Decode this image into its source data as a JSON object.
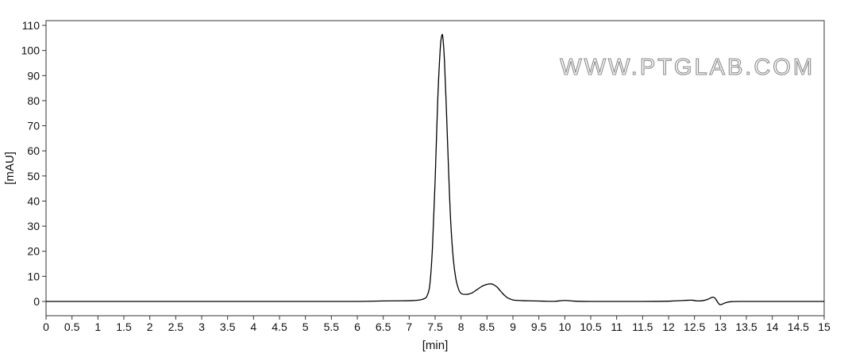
{
  "chart_data": {
    "type": "line",
    "title": "",
    "xlabel": "[min]",
    "ylabel": "[mAU]",
    "xlim": [
      0,
      15
    ],
    "ylim": [
      -6,
      112
    ],
    "x_ticks": [
      0,
      0.5,
      1,
      1.5,
      2,
      2.5,
      3,
      3.5,
      4,
      4.5,
      5,
      5.5,
      6,
      6.5,
      7,
      7.5,
      8,
      8.5,
      9,
      9.5,
      10,
      10.5,
      11,
      11.5,
      12,
      12.5,
      13,
      13.5,
      14,
      14.5,
      15
    ],
    "x_tick_labels": [
      "0",
      "0.5",
      "1",
      "1.5",
      "2",
      "2.5",
      "3",
      "3.5",
      "4",
      "4.5",
      "5",
      "5.5",
      "6",
      "6.5",
      "7",
      "7.5",
      "8",
      "8.5",
      "9",
      "9.5",
      "10",
      "10.5",
      "11",
      "11.5",
      "12",
      "12.5",
      "13",
      "13.5",
      "14",
      "14.5",
      "15"
    ],
    "y_ticks": [
      0,
      10,
      20,
      30,
      40,
      50,
      60,
      70,
      80,
      90,
      100,
      110
    ],
    "y_tick_labels": [
      "0",
      "10",
      "20",
      "30",
      "40",
      "50",
      "60",
      "70",
      "80",
      "90",
      "100",
      "110"
    ],
    "grid": false,
    "legend": "none",
    "line_color": "#000000",
    "series": [
      {
        "x": [
          0,
          1,
          2,
          3,
          4,
          5,
          6,
          6.5,
          7,
          7.2,
          7.3,
          7.35,
          7.4,
          7.45,
          7.5,
          7.55,
          7.6,
          7.63,
          7.65,
          7.68,
          7.72,
          7.76,
          7.8,
          7.85,
          7.9,
          7.95,
          8.0,
          8.1,
          8.2,
          8.3,
          8.4,
          8.5,
          8.55,
          8.6,
          8.65,
          8.7,
          8.75,
          8.8,
          8.85,
          8.9,
          9.0,
          9.1,
          9.2,
          9.4,
          9.6,
          9.8,
          10.0,
          10.2,
          10.5,
          11,
          11.5,
          12,
          12.3,
          12.45,
          12.55,
          12.65,
          12.75,
          12.85,
          12.9,
          12.95,
          13.0,
          13.1,
          13.2,
          13.4,
          14,
          14.5,
          15
        ],
        "y": [
          0,
          0,
          0,
          0,
          0,
          0,
          0,
          0.2,
          0.3,
          0.6,
          1.2,
          2.5,
          7,
          22,
          48,
          80,
          101,
          106,
          105,
          96,
          75,
          52,
          32,
          17,
          9,
          5,
          3.2,
          2.8,
          3.3,
          4.6,
          6,
          6.8,
          7,
          6.9,
          6.4,
          5.6,
          4.4,
          3.2,
          2.2,
          1.4,
          0.6,
          0.4,
          0.3,
          0.2,
          0.1,
          0.05,
          0.4,
          0.1,
          0,
          0,
          0,
          0.1,
          0.4,
          0.5,
          0.2,
          0.3,
          0.8,
          1.7,
          1.2,
          -0.4,
          -1.3,
          -0.5,
          -0.1,
          0,
          0,
          0,
          0
        ]
      }
    ]
  },
  "watermark": "WWW.PTGLAB.COM"
}
